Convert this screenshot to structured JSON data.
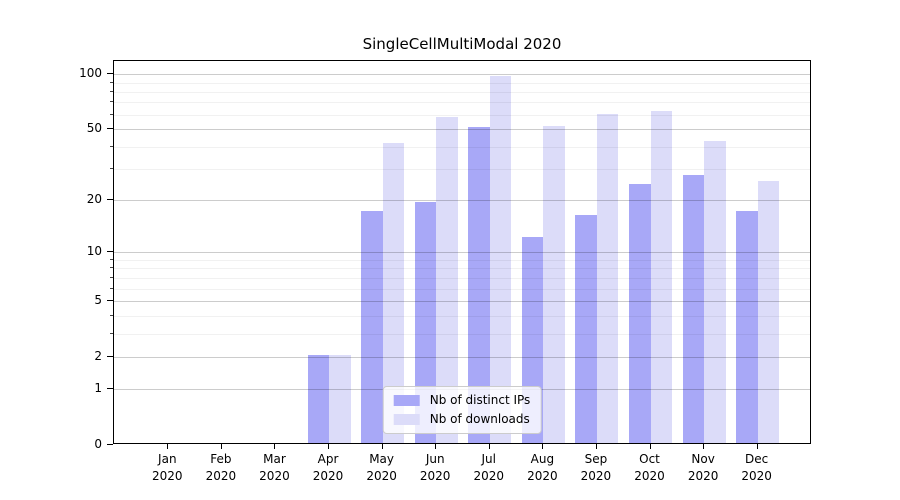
{
  "chart_data": {
    "type": "bar",
    "title": "SingleCellMultiModal 2020",
    "year": "2020",
    "categories": [
      "Jan",
      "Feb",
      "Mar",
      "Apr",
      "May",
      "Jun",
      "Jul",
      "Aug",
      "Sep",
      "Oct",
      "Nov",
      "Dec"
    ],
    "x_tick_labels": [
      "Jan 2020",
      "Feb 2020",
      "Mar 2020",
      "Apr 2020",
      "May 2020",
      "Jun 2020",
      "Jul 2020",
      "Aug 2020",
      "Sep 2020",
      "Oct 2020",
      "Nov 2020",
      "Dec 2020"
    ],
    "series": [
      {
        "name": "Nb of distinct IPs",
        "color": "#a8a8f7",
        "values": [
          0,
          0,
          0,
          2,
          17,
          19,
          50,
          12,
          16,
          24,
          27,
          17
        ]
      },
      {
        "name": "Nb of downloads",
        "color": "#dcdcf9",
        "values": [
          0,
          0,
          0,
          2,
          41,
          57,
          95,
          51,
          59,
          61,
          42,
          25
        ]
      }
    ],
    "yscale": "log1p",
    "yticks": [
      0,
      1,
      2,
      5,
      10,
      20,
      50,
      100
    ],
    "yticks_minor": [
      3,
      4,
      6,
      7,
      8,
      9,
      30,
      40,
      60,
      70,
      80,
      90
    ],
    "ylim": [
      0,
      118
    ],
    "xlabel": "",
    "ylabel": "",
    "grid": true,
    "grid_over_bars": true,
    "legend_position": "lower center",
    "colors": {
      "grid_major": "rgba(0,0,0,0.20)",
      "grid_minor": "rgba(0,0,0,0.055)",
      "axis": "#000000",
      "background": "#ffffff"
    }
  }
}
